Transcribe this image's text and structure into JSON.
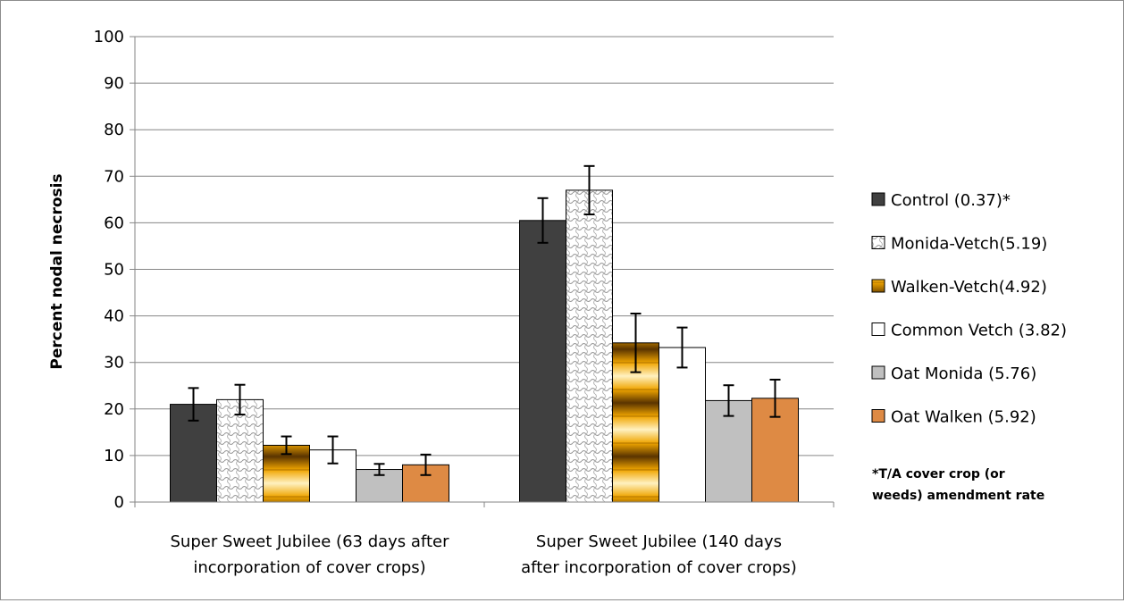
{
  "chart_data": {
    "type": "bar",
    "ylabel": "Percent nodal necrosis",
    "ylim": [
      0,
      100
    ],
    "yticks": [
      0,
      10,
      20,
      30,
      40,
      50,
      60,
      70,
      80,
      90,
      100
    ],
    "grid": true,
    "legend_position": "right",
    "categories": [
      [
        "Super Sweet Jubilee (63 days after",
        "incorporation of cover crops)"
      ],
      [
        "Super Sweet Jubilee (140 days",
        "after incorporation of cover crops)"
      ]
    ],
    "series": [
      {
        "name": "Control (0.37)*",
        "values": [
          21,
          60.5
        ],
        "errors": [
          3.5,
          4.8
        ],
        "color": "#404040",
        "pattern": "solid"
      },
      {
        "name": "Monida-Vetch(5.19)",
        "values": [
          22,
          67
        ],
        "errors": [
          3.2,
          5.2
        ],
        "color": "#ffffff",
        "pattern": "crosshatch"
      },
      {
        "name": "Walken-Vetch(4.92)",
        "values": [
          12.2,
          34.2
        ],
        "errors": [
          1.9,
          6.3
        ],
        "color": "#e8a000",
        "pattern": "gold-gradient"
      },
      {
        "name": "Common Vetch (3.82)",
        "values": [
          11.2,
          33.2
        ],
        "errors": [
          2.9,
          4.3
        ],
        "color": "#ffffff",
        "pattern": "solid"
      },
      {
        "name": "Oat Monida (5.76)",
        "values": [
          7,
          21.8
        ],
        "errors": [
          1.2,
          3.3
        ],
        "color": "#c0c0c0",
        "pattern": "solid"
      },
      {
        "name": "Oat Walken (5.92)",
        "values": [
          8,
          22.3
        ],
        "errors": [
          2.2,
          4.0
        ],
        "color": "#de8a44",
        "pattern": "solid"
      }
    ],
    "annotation": [
      "*T/A cover crop (or",
      "weeds) amendment rate"
    ]
  }
}
